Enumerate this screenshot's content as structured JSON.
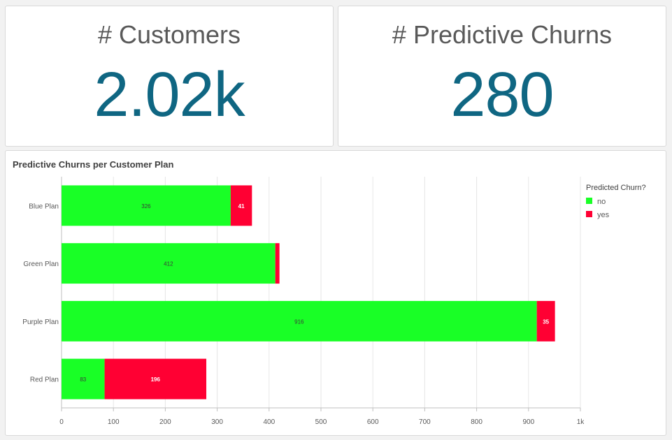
{
  "kpis": {
    "customers": {
      "title": "# Customers",
      "value": "2.02k"
    },
    "churns": {
      "title": "# Predictive Churns",
      "value": "280"
    }
  },
  "chart_data": {
    "type": "bar",
    "orientation": "horizontal",
    "stacked": true,
    "title": "Predictive Churns per Customer Plan",
    "categories": [
      "Blue Plan",
      "Green Plan",
      "Purple Plan",
      "Red Plan"
    ],
    "series": [
      {
        "name": "no",
        "color": "#19ff26",
        "values": [
          326,
          412,
          916,
          83
        ],
        "labels": [
          "326",
          "412",
          "916",
          "83"
        ]
      },
      {
        "name": "yes",
        "color": "#ff0033",
        "values": [
          41,
          8,
          35,
          196
        ],
        "labels": [
          "41",
          "",
          "35",
          "196"
        ]
      }
    ],
    "xlim": [
      0,
      1000
    ],
    "xticks": [
      "0",
      "100",
      "200",
      "300",
      "400",
      "500",
      "600",
      "700",
      "800",
      "900",
      "1k"
    ],
    "legend": {
      "title": "Predicted Churn?",
      "position": "right"
    },
    "grid": true
  }
}
